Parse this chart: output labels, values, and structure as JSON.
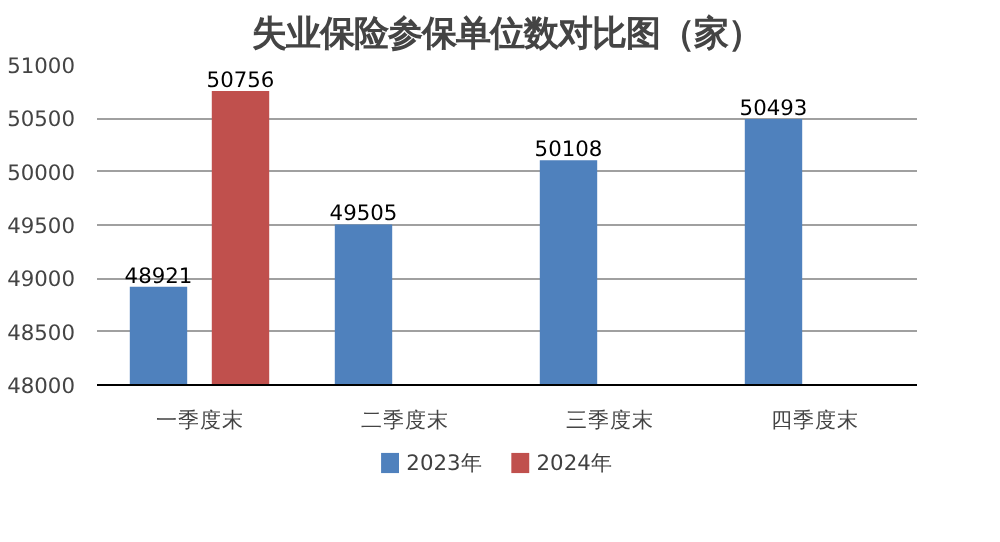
{
  "chart_data": {
    "type": "bar",
    "title": "失业保险参保单位数对比图（家）",
    "categories": [
      "一季度末",
      "二季度末",
      "三季度末",
      "四季度末"
    ],
    "series": [
      {
        "name": "2023年",
        "color": "#4f81bd",
        "values": [
          48921,
          49505,
          50108,
          50493
        ]
      },
      {
        "name": "2024年",
        "color": "#c0504d",
        "values": [
          50756,
          null,
          null,
          null
        ]
      }
    ],
    "ylim": [
      48000,
      51000
    ],
    "yticks": [
      48000,
      48500,
      49000,
      49500,
      50000,
      50500,
      51000
    ],
    "grid": "y",
    "legend": "bottom",
    "data_labels": true
  }
}
